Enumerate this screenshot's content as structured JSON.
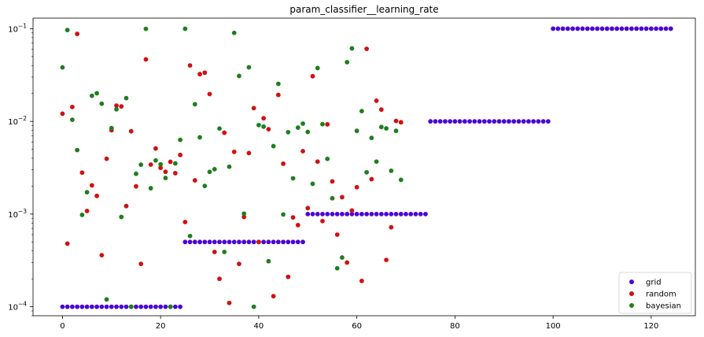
{
  "chart_data": {
    "type": "scatter",
    "title": "param_classifier__learning_rate",
    "xlabel": "",
    "ylabel": "",
    "xlim": [
      -6,
      129
    ],
    "ylim": [
      8e-05,
      0.13
    ],
    "yscale": "log",
    "grid": false,
    "legend_placement": "bottom-right",
    "x_ticks": [
      0,
      20,
      40,
      60,
      80,
      100,
      120
    ],
    "x_tick_labels": [
      "0",
      "20",
      "40",
      "60",
      "80",
      "100",
      "120"
    ],
    "y_ticks": [
      0.0001,
      0.001,
      0.01,
      0.1
    ],
    "y_tick_labels": [
      {
        "base": "10",
        "exp": "−4"
      },
      {
        "base": "10",
        "exp": "−3"
      },
      {
        "base": "10",
        "exp": "−2"
      },
      {
        "base": "10",
        "exp": "−1"
      }
    ],
    "series": [
      {
        "name": "grid",
        "color": "#4b06d6",
        "points": [
          [
            0,
            0.0001
          ],
          [
            1,
            0.0001
          ],
          [
            2,
            0.0001
          ],
          [
            3,
            0.0001
          ],
          [
            4,
            0.0001
          ],
          [
            5,
            0.0001
          ],
          [
            6,
            0.0001
          ],
          [
            7,
            0.0001
          ],
          [
            8,
            0.0001
          ],
          [
            9,
            0.0001
          ],
          [
            10,
            0.0001
          ],
          [
            11,
            0.0001
          ],
          [
            12,
            0.0001
          ],
          [
            13,
            0.0001
          ],
          [
            14,
            0.0001
          ],
          [
            15,
            0.0001
          ],
          [
            16,
            0.0001
          ],
          [
            17,
            0.0001
          ],
          [
            18,
            0.0001
          ],
          [
            19,
            0.0001
          ],
          [
            20,
            0.0001
          ],
          [
            21,
            0.0001
          ],
          [
            22,
            0.0001
          ],
          [
            23,
            0.0001
          ],
          [
            24,
            0.0001
          ],
          [
            25,
            0.0005
          ],
          [
            26,
            0.0005
          ],
          [
            27,
            0.0005
          ],
          [
            28,
            0.0005
          ],
          [
            29,
            0.0005
          ],
          [
            30,
            0.0005
          ],
          [
            31,
            0.0005
          ],
          [
            32,
            0.0005
          ],
          [
            33,
            0.0005
          ],
          [
            34,
            0.0005
          ],
          [
            35,
            0.0005
          ],
          [
            36,
            0.0005
          ],
          [
            37,
            0.0005
          ],
          [
            38,
            0.0005
          ],
          [
            39,
            0.0005
          ],
          [
            40,
            0.0005
          ],
          [
            41,
            0.0005
          ],
          [
            42,
            0.0005
          ],
          [
            43,
            0.0005
          ],
          [
            44,
            0.0005
          ],
          [
            45,
            0.0005
          ],
          [
            46,
            0.0005
          ],
          [
            47,
            0.0005
          ],
          [
            48,
            0.0005
          ],
          [
            49,
            0.0005
          ],
          [
            50,
            0.001
          ],
          [
            51,
            0.001
          ],
          [
            52,
            0.001
          ],
          [
            53,
            0.001
          ],
          [
            54,
            0.001
          ],
          [
            55,
            0.001
          ],
          [
            56,
            0.001
          ],
          [
            57,
            0.001
          ],
          [
            58,
            0.001
          ],
          [
            59,
            0.001
          ],
          [
            60,
            0.001
          ],
          [
            61,
            0.001
          ],
          [
            62,
            0.001
          ],
          [
            63,
            0.001
          ],
          [
            64,
            0.001
          ],
          [
            65,
            0.001
          ],
          [
            66,
            0.001
          ],
          [
            67,
            0.001
          ],
          [
            68,
            0.001
          ],
          [
            69,
            0.001
          ],
          [
            70,
            0.001
          ],
          [
            71,
            0.001
          ],
          [
            72,
            0.001
          ],
          [
            73,
            0.001
          ],
          [
            74,
            0.001
          ],
          [
            75,
            0.01
          ],
          [
            76,
            0.01
          ],
          [
            77,
            0.01
          ],
          [
            78,
            0.01
          ],
          [
            79,
            0.01
          ],
          [
            80,
            0.01
          ],
          [
            81,
            0.01
          ],
          [
            82,
            0.01
          ],
          [
            83,
            0.01
          ],
          [
            84,
            0.01
          ],
          [
            85,
            0.01
          ],
          [
            86,
            0.01
          ],
          [
            87,
            0.01
          ],
          [
            88,
            0.01
          ],
          [
            89,
            0.01
          ],
          [
            90,
            0.01
          ],
          [
            91,
            0.01
          ],
          [
            92,
            0.01
          ],
          [
            93,
            0.01
          ],
          [
            94,
            0.01
          ],
          [
            95,
            0.01
          ],
          [
            96,
            0.01
          ],
          [
            97,
            0.01
          ],
          [
            98,
            0.01
          ],
          [
            99,
            0.01
          ],
          [
            100,
            0.1
          ],
          [
            101,
            0.1
          ],
          [
            102,
            0.1
          ],
          [
            103,
            0.1
          ],
          [
            104,
            0.1
          ],
          [
            105,
            0.1
          ],
          [
            106,
            0.1
          ],
          [
            107,
            0.1
          ],
          [
            108,
            0.1
          ],
          [
            109,
            0.1
          ],
          [
            110,
            0.1
          ],
          [
            111,
            0.1
          ],
          [
            112,
            0.1
          ],
          [
            113,
            0.1
          ],
          [
            114,
            0.1
          ],
          [
            115,
            0.1
          ],
          [
            116,
            0.1
          ],
          [
            117,
            0.1
          ],
          [
            118,
            0.1
          ],
          [
            119,
            0.1
          ],
          [
            120,
            0.1
          ],
          [
            121,
            0.1
          ],
          [
            122,
            0.1
          ],
          [
            123,
            0.1
          ],
          [
            124,
            0.1
          ]
        ]
      },
      {
        "name": "random",
        "color": "#d11111",
        "points": [
          [
            0,
            0.0121
          ],
          [
            1,
            0.00048
          ],
          [
            2,
            0.0143
          ],
          [
            3,
            0.0878
          ],
          [
            4,
            0.0028
          ],
          [
            5,
            0.00108
          ],
          [
            6,
            0.00204
          ],
          [
            7,
            0.00157
          ],
          [
            8,
            0.00036
          ],
          [
            9,
            0.00395
          ],
          [
            10,
            0.00801
          ],
          [
            11,
            0.0148
          ],
          [
            12,
            0.0145
          ],
          [
            13,
            0.00122
          ],
          [
            14,
            0.00782
          ],
          [
            15,
            0.00199
          ],
          [
            16,
            0.00029
          ],
          [
            17,
            0.0466
          ],
          [
            18,
            0.00342
          ],
          [
            19,
            0.0051
          ],
          [
            20,
            0.00315
          ],
          [
            21,
            0.00286
          ],
          [
            22,
            0.00366
          ],
          [
            23,
            0.00276
          ],
          [
            24,
            0.00434
          ],
          [
            25,
            0.00082
          ],
          [
            26,
            0.0401
          ],
          [
            27,
            0.00231
          ],
          [
            28,
            0.0323
          ],
          [
            29,
            0.0335
          ],
          [
            30,
            0.0197
          ],
          [
            31,
            0.00039
          ],
          [
            32,
            0.0002
          ],
          [
            33,
            0.00754
          ],
          [
            34,
            0.00011
          ],
          [
            35,
            0.00469
          ],
          [
            36,
            0.00029
          ],
          [
            37,
            0.00093
          ],
          [
            38,
            0.00455
          ],
          [
            39,
            0.0139
          ],
          [
            40,
            0.0005
          ],
          [
            41,
            0.0108
          ],
          [
            42,
            0.00823
          ],
          [
            43,
            0.00013
          ],
          [
            44,
            0.0193
          ],
          [
            45,
            0.00349
          ],
          [
            46,
            0.00021
          ],
          [
            47,
            0.00092
          ],
          [
            48,
            0.00076
          ],
          [
            49,
            0.00477
          ],
          [
            50,
            0.00116
          ],
          [
            51,
            0.0307
          ],
          [
            52,
            0.00368
          ],
          [
            53,
            0.00084
          ],
          [
            54,
            0.00928
          ],
          [
            55,
            0.00225
          ],
          [
            56,
            0.0006
          ],
          [
            57,
            0.00152
          ],
          [
            58,
            0.0003
          ],
          [
            59,
            0.00109
          ],
          [
            60,
            0.00195
          ],
          [
            61,
            0.00019
          ],
          [
            62,
            0.0606
          ],
          [
            63,
            0.00238
          ],
          [
            64,
            0.0167
          ],
          [
            65,
            0.0134
          ],
          [
            66,
            0.00032
          ],
          [
            67,
            0.00072
          ],
          [
            68,
            0.0101
          ],
          [
            69,
            0.00977
          ]
        ]
      },
      {
        "name": "bayesian",
        "color": "#1f7e1f",
        "points": [
          [
            0,
            0.0382
          ],
          [
            1,
            0.0966
          ],
          [
            2,
            0.0104
          ],
          [
            3,
            0.0049
          ],
          [
            4,
            0.00098
          ],
          [
            5,
            0.00172
          ],
          [
            6,
            0.0189
          ],
          [
            7,
            0.0201
          ],
          [
            8,
            0.0155
          ],
          [
            9,
            0.00012
          ],
          [
            10,
            0.00846
          ],
          [
            11,
            0.0135
          ],
          [
            12,
            0.00093
          ],
          [
            13,
            0.0178
          ],
          [
            14,
            0.0001
          ],
          [
            15,
            0.00272
          ],
          [
            16,
            0.00341
          ],
          [
            17,
            0.0996
          ],
          [
            18,
            0.0019
          ],
          [
            19,
            0.00379
          ],
          [
            20,
            0.00344
          ],
          [
            21,
            0.00245
          ],
          [
            22,
            0.0001
          ],
          [
            23,
            0.00352
          ],
          [
            24,
            0.00632
          ],
          [
            25,
            0.0998
          ],
          [
            26,
            0.00058
          ],
          [
            27,
            0.0153
          ],
          [
            28,
            0.00673
          ],
          [
            29,
            0.00201
          ],
          [
            30,
            0.00285
          ],
          [
            31,
            0.00305
          ],
          [
            32,
            0.00837
          ],
          [
            33,
            0.00039
          ],
          [
            34,
            0.00324
          ],
          [
            35,
            0.0901
          ],
          [
            36,
            0.0309
          ],
          [
            37,
            0.00101
          ],
          [
            38,
            0.0383
          ],
          [
            39,
            0.0001
          ],
          [
            40,
            0.00912
          ],
          [
            41,
            0.00878
          ],
          [
            42,
            0.00031
          ],
          [
            43,
            0.00541
          ],
          [
            44,
            0.0254
          ],
          [
            45,
            0.00099
          ],
          [
            46,
            0.00765
          ],
          [
            47,
            0.00243
          ],
          [
            48,
            0.00857
          ],
          [
            49,
            0.00946
          ],
          [
            50,
            0.00769
          ],
          [
            51,
            0.00212
          ],
          [
            52,
            0.0376
          ],
          [
            53,
            0.00933
          ],
          [
            54,
            0.00394
          ],
          [
            55,
            0.00148
          ],
          [
            56,
            0.00026
          ],
          [
            57,
            0.00034
          ],
          [
            58,
            0.0435
          ],
          [
            59,
            0.0613
          ],
          [
            60,
            0.0079
          ],
          [
            61,
            0.0129
          ],
          [
            62,
            0.00282
          ],
          [
            63,
            0.00663
          ],
          [
            64,
            0.00368
          ],
          [
            65,
            0.00869
          ],
          [
            66,
            0.00839
          ],
          [
            67,
            0.00293
          ],
          [
            68,
            0.0079
          ],
          [
            69,
            0.00234
          ]
        ]
      }
    ]
  }
}
